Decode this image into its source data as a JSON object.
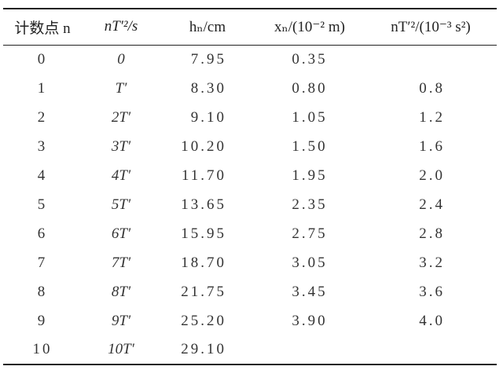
{
  "table": {
    "header": [
      "计数点 n",
      "nT′²/s",
      "hₙ/cm",
      "xₙ/(10⁻² m)",
      "nT′²/(10⁻³ s²)"
    ],
    "rows": [
      [
        "0",
        "0",
        "7.95",
        "0.35",
        null
      ],
      [
        "1",
        "T′",
        "8.30",
        "0.80",
        "0.8"
      ],
      [
        "2",
        "2T′",
        "9.10",
        "1.05",
        "1.2"
      ],
      [
        "3",
        "3T′",
        "10.20",
        "1.50",
        "1.6"
      ],
      [
        "4",
        "4T′",
        "11.70",
        "1.95",
        "2.0"
      ],
      [
        "5",
        "5T′",
        "13.65",
        "2.35",
        "2.4"
      ],
      [
        "6",
        "6T′",
        "15.95",
        "2.75",
        "2.8"
      ],
      [
        "7",
        "7T′",
        "18.70",
        "3.05",
        "3.2"
      ],
      [
        "8",
        "8T′",
        "21.75",
        "3.45",
        "3.6"
      ],
      [
        "9",
        "9T′",
        "25.20",
        "3.90",
        "4.0"
      ],
      [
        "10",
        "10T′",
        "29.10",
        null,
        null
      ]
    ]
  }
}
